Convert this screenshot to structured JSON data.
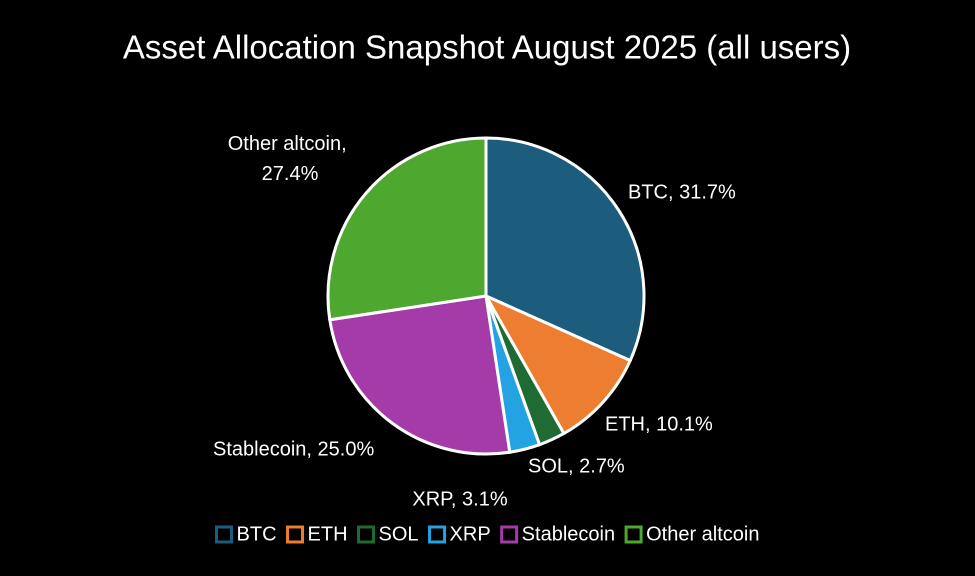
{
  "chart_data": {
    "type": "pie",
    "title": "Asset Allocation Snapshot August 2025 (all users)",
    "categories": [
      "BTC",
      "ETH",
      "SOL",
      "XRP",
      "Stablecoin",
      "Other altcoin"
    ],
    "values": [
      31.7,
      10.1,
      2.7,
      3.1,
      25.0,
      27.4
    ],
    "value_labels": [
      "BTC, 31.7%",
      "ETH, 10.1%",
      "SOL, 2.7%",
      "XRP, 3.1%",
      "Stablecoin, 25.0%",
      "Other altcoin, 27.4%"
    ],
    "colors": [
      "#1c5d7e",
      "#ed7d31",
      "#1f6b33",
      "#23a3e2",
      "#a43ba9",
      "#4ea72e"
    ],
    "legend": "bottom"
  }
}
